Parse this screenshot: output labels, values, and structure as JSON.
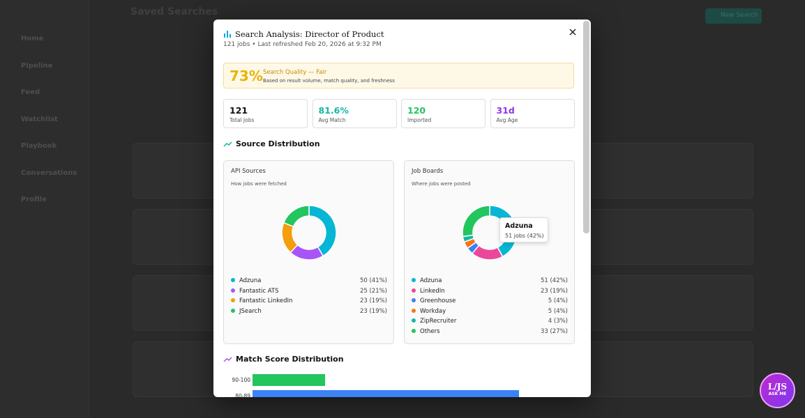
{
  "app": {
    "nav": [
      "Home",
      "Pipeline",
      "Feed",
      "Watchlist",
      "Playbook",
      "Conversations",
      "Profile"
    ],
    "page_title": "Saved Searches",
    "new_button": "New Search"
  },
  "modal": {
    "title": "Search Analysis: Director of Product",
    "subtitle": "121 jobs • Last refreshed Feb 20, 2026 at 9:32 PM",
    "quality": {
      "score": "73%",
      "label": "Search Quality — Fair",
      "description": "Based on result volume, match quality, and freshness"
    },
    "stats": [
      {
        "value": "121",
        "label": "Total Jobs"
      },
      {
        "value": "81.6%",
        "label": "Avg Match"
      },
      {
        "value": "120",
        "label": "Imported"
      },
      {
        "value": "31d",
        "label": "Avg Age"
      }
    ],
    "source_heading": "Source Distribution",
    "charts": [
      {
        "type": "donut",
        "title": "API Sources",
        "subtitle": "How jobs were fetched",
        "categories": [
          "Adzuna",
          "Fantastic ATS",
          "Fantastic LinkedIn",
          "JSearch"
        ],
        "values": [
          50,
          25,
          23,
          23
        ],
        "value_labels": [
          "50 (41%)",
          "25 (21%)",
          "23 (19%)",
          "23 (19%)"
        ],
        "colors": [
          "#06b6d4",
          "#a855f7",
          "#f59e0b",
          "#22c55e"
        ]
      },
      {
        "type": "donut",
        "title": "Job Boards",
        "subtitle": "Where jobs were posted",
        "categories": [
          "Adzuna",
          "LinkedIn",
          "Greenhouse",
          "Workday",
          "ZipRecruiter",
          "Others"
        ],
        "values": [
          51,
          23,
          5,
          5,
          4,
          33
        ],
        "value_labels": [
          "51 (42%)",
          "23 (19%)",
          "5 (4%)",
          "5 (4%)",
          "4 (3%)",
          "33 (27%)"
        ],
        "colors": [
          "#06b6d4",
          "#ec4899",
          "#3b82f6",
          "#f97316",
          "#14b8a6",
          "#22c55e"
        ]
      }
    ],
    "tooltip": {
      "title": "Adzuna",
      "text": "51 jobs (42%)"
    },
    "match_heading": "Match Score Distribution",
    "match_chart": {
      "type": "bar",
      "categories": [
        "90-100",
        "80-89"
      ],
      "values": [
        12,
        44
      ],
      "colors": [
        "#22c55e",
        "#3b82f6"
      ]
    }
  },
  "assistant": {
    "logo": "L/JS",
    "label": "ASK ME"
  }
}
